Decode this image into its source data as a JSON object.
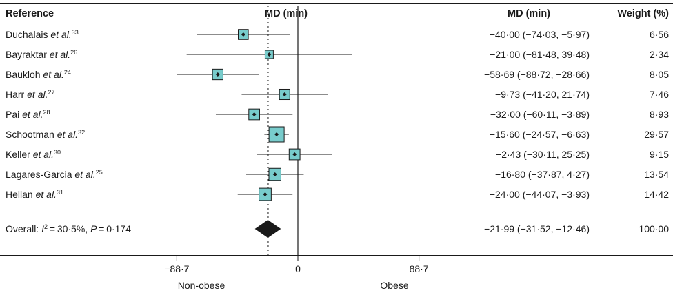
{
  "chart_data": {
    "type": "forest",
    "headers": {
      "reference": "Reference",
      "plot": "MD (min)",
      "estimate": "MD (min)",
      "weight": "Weight (%)"
    },
    "studies": [
      {
        "author": "Duchalais ",
        "etal": "et al.",
        "ref": "33",
        "md": -40.0,
        "lo": -74.03,
        "hi": -5.97,
        "ci_text": "−40·00 (−74·03, −5·97)",
        "weight": 6.56,
        "weight_text": "6·56"
      },
      {
        "author": "Bayraktar ",
        "etal": "et al.",
        "ref": "26",
        "md": -21.0,
        "lo": -81.48,
        "hi": 39.48,
        "ci_text": "−21·00 (−81·48, 39·48)",
        "weight": 2.34,
        "weight_text": "2·34"
      },
      {
        "author": "Baukloh ",
        "etal": "et al.",
        "ref": "24",
        "md": -58.69,
        "lo": -88.72,
        "hi": -28.66,
        "ci_text": "−58·69 (−88·72, −28·66)",
        "weight": 8.05,
        "weight_text": "8·05"
      },
      {
        "author": "Harr ",
        "etal": "et al.",
        "ref": "27",
        "md": -9.73,
        "lo": -41.2,
        "hi": 21.74,
        "ci_text": "−9·73 (−41·20, 21·74)",
        "weight": 7.46,
        "weight_text": "7·46"
      },
      {
        "author": "Pai ",
        "etal": "et al.",
        "ref": "28",
        "md": -32.0,
        "lo": -60.11,
        "hi": -3.89,
        "ci_text": "−32·00 (−60·11, −3·89)",
        "weight": 8.93,
        "weight_text": "8·93"
      },
      {
        "author": "Schootman ",
        "etal": "et al.",
        "ref": "32",
        "md": -15.6,
        "lo": -24.57,
        "hi": -6.63,
        "ci_text": "−15·60 (−24·57, −6·63)",
        "weight": 29.57,
        "weight_text": "29·57"
      },
      {
        "author": "Keller ",
        "etal": "et al.",
        "ref": "30",
        "md": -2.43,
        "lo": -30.11,
        "hi": 25.25,
        "ci_text": "−2·43 (−30·11, 25·25)",
        "weight": 9.15,
        "weight_text": "9·15"
      },
      {
        "author": "Lagares-Garcia ",
        "etal": "et al.",
        "ref": "25",
        "md": -16.8,
        "lo": -37.87,
        "hi": 4.27,
        "ci_text": "−16·80 (−37·87, 4·27)",
        "weight": 13.54,
        "weight_text": "13·54"
      },
      {
        "author": "Hellan ",
        "etal": "et al.",
        "ref": "31",
        "md": -24.0,
        "lo": -44.07,
        "hi": -3.93,
        "ci_text": "−24·00 (−44·07, −3·93)",
        "weight": 14.42,
        "weight_text": "14·42"
      }
    ],
    "overall": {
      "label": "Overall: I²=30·5%, P=0·174",
      "label_parts": [
        "Overall: ",
        "I",
        "2",
        " = 30·5%, ",
        "P",
        " = 0·174"
      ],
      "md": -21.99,
      "lo": -31.52,
      "hi": -12.46,
      "ci_text": "−21·99 (−31·52, −12·46)",
      "weight": 100.0,
      "weight_text": "100·00"
    },
    "x_axis": {
      "ticks": [
        -88.7,
        0,
        88.7
      ],
      "tick_labels": [
        "−88·7",
        "0",
        "88·7"
      ],
      "range": [
        -88.7,
        88.7
      ]
    },
    "direction_labels": {
      "left": "Non-obese",
      "right": "Obese"
    },
    "colors": {
      "box": "#78cccc",
      "box_stroke": "#1a1a1a",
      "diamond": "#1a1a1a",
      "line": "#1a1a1a"
    }
  }
}
